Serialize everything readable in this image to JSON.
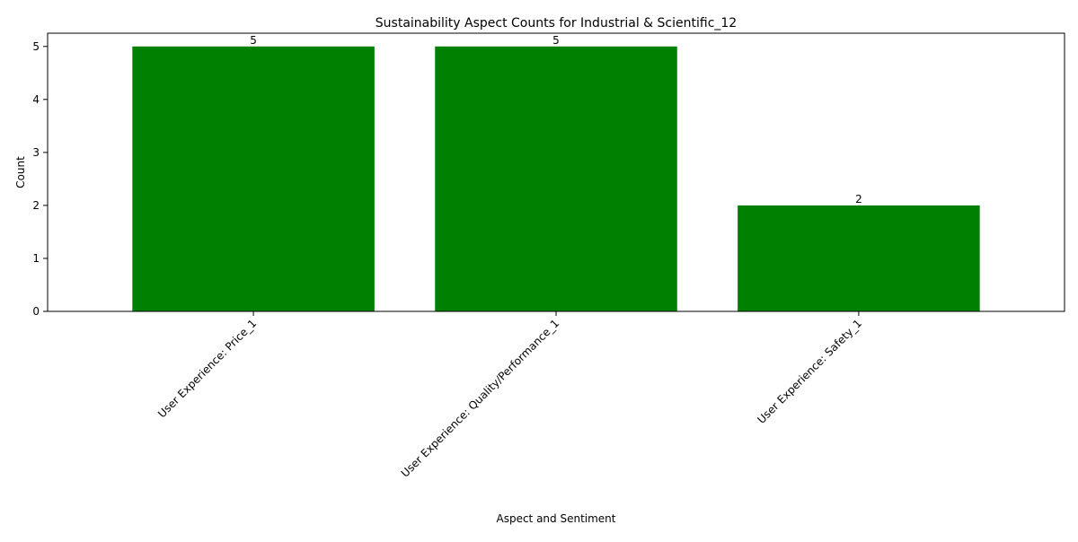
{
  "chart_data": {
    "type": "bar",
    "title": "Sustainability Aspect Counts for Industrial & Scientific_12",
    "xlabel": "Aspect and Sentiment",
    "ylabel": "Count",
    "categories": [
      "User Experience: Price_1",
      "User Experience: Quality/Performance_1",
      "User Experience: Safety_1"
    ],
    "values": [
      5,
      5,
      2
    ],
    "data_labels": [
      "5",
      "5",
      "2"
    ],
    "yticks": [
      0,
      1,
      2,
      3,
      4,
      5
    ],
    "ylim": [
      0,
      5.25
    ],
    "grid": false,
    "legend": "none",
    "bar_color": "#008000"
  }
}
